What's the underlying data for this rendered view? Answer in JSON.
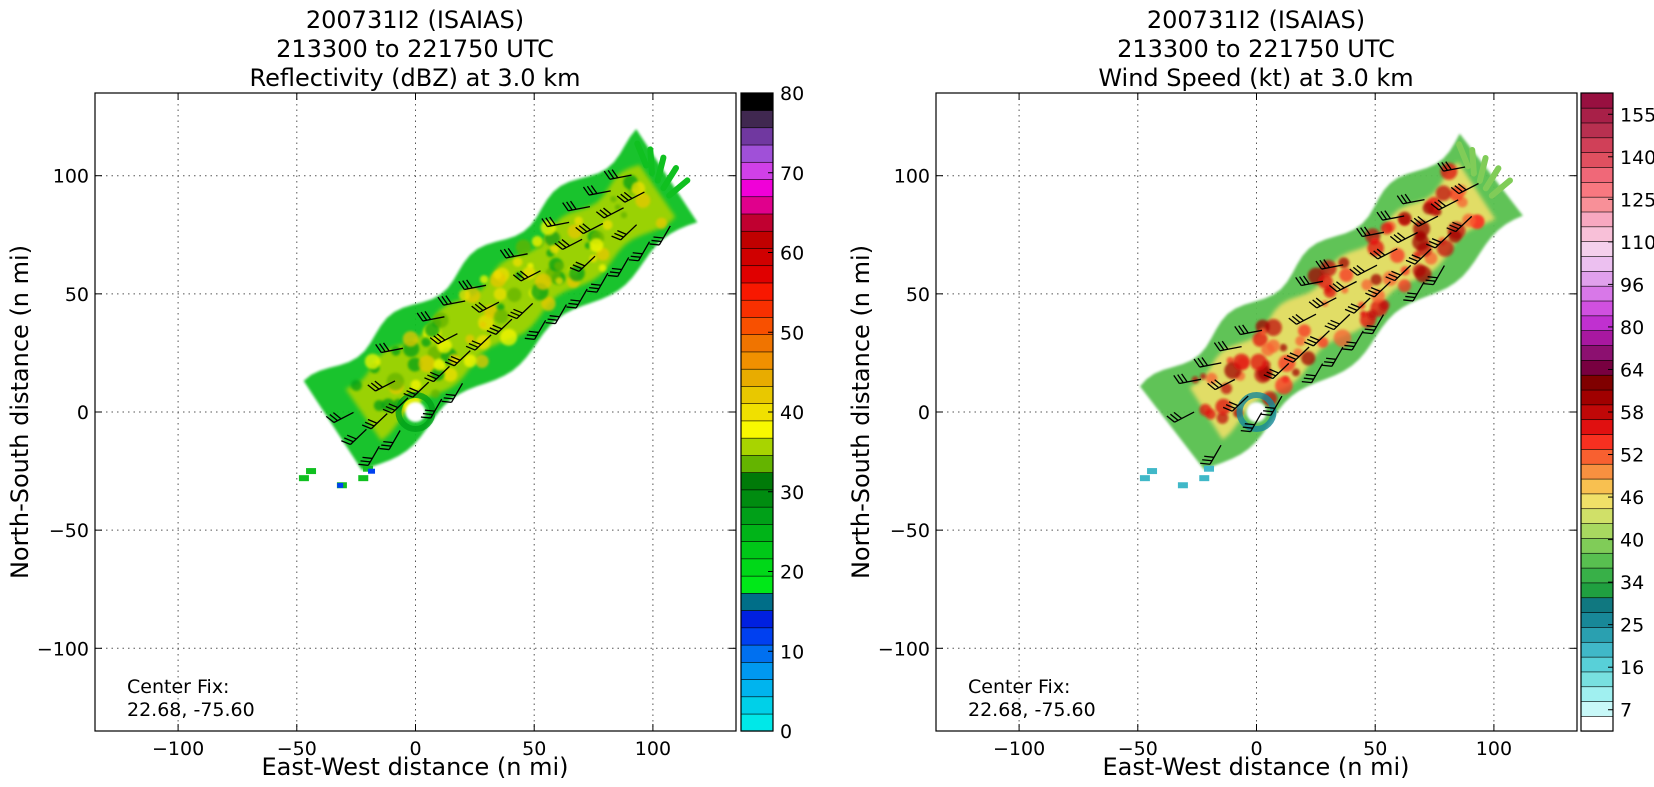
{
  "chart_data": [
    {
      "type": "heatmap",
      "title_lines": [
        "200731I2 (ISAIAS)",
        "213300 to 221750 UTC",
        "Reflectivity (dBZ) at 3.0 km"
      ],
      "xlabel": "East-West distance (n mi)",
      "ylabel": "North-South distance (n mi)",
      "xlim": [
        -135,
        135
      ],
      "ylim": [
        -135,
        135
      ],
      "xticks": [
        -100,
        -50,
        0,
        50,
        100
      ],
      "yticks": [
        -100,
        -50,
        0,
        50,
        100
      ],
      "grid": true,
      "annotation": [
        "Center Fix:",
        "22.68, -75.60"
      ],
      "colorbar": {
        "min": 0,
        "max": 80,
        "tick_labels": [
          "0",
          "10",
          "20",
          "30",
          "40",
          "50",
          "60",
          "70",
          "80"
        ],
        "tick_values": [
          0,
          10,
          20,
          30,
          40,
          50,
          60,
          70,
          80
        ],
        "colors": [
          "#00e8e8",
          "#00d0e8",
          "#00b4ee",
          "#0098f0",
          "#0070f0",
          "#0040f0",
          "#0020e0",
          "#006e88",
          "#00e818",
          "#00d818",
          "#00c818",
          "#00b418",
          "#00a018",
          "#008c10",
          "#007a08",
          "#64b400",
          "#a8d400",
          "#f8f800",
          "#f0e000",
          "#e8c800",
          "#e8ac00",
          "#f09000",
          "#f07400",
          "#f85000",
          "#f83000",
          "#f81800",
          "#e00000",
          "#d00000",
          "#c00000",
          "#c00030",
          "#e0008c",
          "#f000d8",
          "#d040e8",
          "#a050d8",
          "#7038a0",
          "#402850",
          "#000000"
        ]
      },
      "storm_track_axis": {
        "x": [
          -30,
          108
        ],
        "y": [
          -5,
          100
        ],
        "half_width": 22
      },
      "wind_barbs": "series of black wind barbs overlaid along the storm"
    },
    {
      "type": "heatmap",
      "title_lines": [
        "200731I2 (ISAIAS)",
        "213300 to 221750 UTC",
        "Wind Speed (kt) at 3.0 km"
      ],
      "xlabel": "East-West distance (n mi)",
      "ylabel": "North-South distance (n mi)",
      "xlim": [
        -135,
        135
      ],
      "ylim": [
        -135,
        135
      ],
      "xticks": [
        -100,
        -50,
        0,
        50,
        100
      ],
      "yticks": [
        -100,
        -50,
        0,
        50,
        100
      ],
      "grid": true,
      "annotation": [
        "Center Fix:",
        "22.68, -75.60"
      ],
      "colorbar": {
        "tick_labels": [
          "7",
          "16",
          "25",
          "34",
          "40",
          "46",
          "52",
          "58",
          "64",
          "80",
          "96",
          "110",
          "125",
          "140",
          "155"
        ],
        "colors": [
          "#ffffff",
          "#c8f8f8",
          "#a0f0f0",
          "#78e0e0",
          "#58d0d8",
          "#40b8c8",
          "#2aa0b0",
          "#188898",
          "#107880",
          "#20a040",
          "#38b048",
          "#58c050",
          "#80cc58",
          "#a8d860",
          "#d0e068",
          "#f0e068",
          "#f8c050",
          "#f89040",
          "#f86030",
          "#f83020",
          "#e01010",
          "#c00808",
          "#a00000",
          "#800000",
          "#780040",
          "#8c1070",
          "#a818a0",
          "#c030d0",
          "#d050e0",
          "#d878e8",
          "#e0a0ec",
          "#ecc0f0",
          "#f4d0ec",
          "#f8c0d8",
          "#f8a8c0",
          "#f89098",
          "#f87880",
          "#f06878",
          "#e05060",
          "#d04058",
          "#b83050",
          "#a82048",
          "#981040"
        ]
      },
      "storm_track_axis": {
        "x": [
          -30,
          100
        ],
        "y": [
          -5,
          100
        ],
        "half_width": 22
      },
      "wind_barbs": "series of black wind barbs overlaid along the storm"
    }
  ]
}
